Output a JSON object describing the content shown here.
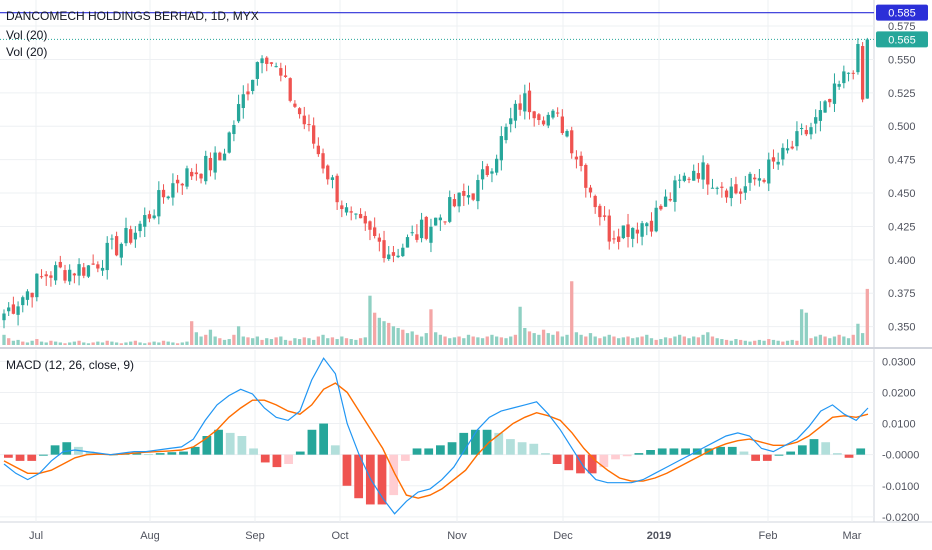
{
  "header": {
    "symbol_title": "DANCOMECH HOLDINGS BERHAD, 1D, MYX",
    "vol_label_1": "Vol (20)",
    "vol_label_2": "Vol (20)"
  },
  "macd_panel": {
    "title": "MACD (12, 26, close, 9)"
  },
  "price_axis": {
    "ticks": [
      "0.575",
      "0.550",
      "0.525",
      "0.500",
      "0.475",
      "0.450",
      "0.425",
      "0.400",
      "0.375",
      "0.350"
    ],
    "badge_high": "0.585",
    "badge_last": "0.565"
  },
  "macd_axis": {
    "ticks": [
      "0.0300",
      "0.0200",
      "0.0100",
      "-0.0000",
      "-0.0100",
      "-0.0200"
    ]
  },
  "time_axis": {
    "labels": [
      "Jul",
      "Aug",
      "Sep",
      "Oct",
      "Nov",
      "Dec",
      "2019",
      "Feb",
      "Mar"
    ]
  },
  "colors": {
    "up": "#26a69a",
    "down": "#ef5350",
    "vol_up": "#8fd0c3",
    "vol_down": "#f4a6a6",
    "hist_up_strong": "#26a69a",
    "hist_up_weak": "#b2dfdb",
    "hist_down_strong": "#ef5350",
    "hist_down_weak": "#ffcdd2",
    "macd_line": "#2196f3",
    "signal_line": "#ff6d00",
    "high_line": "#2b2fd8",
    "last_line": "#26a69a"
  },
  "chart_data": [
    {
      "type": "candlestick",
      "title": "DANCOMECH HOLDINGS BERHAD, 1D, MYX",
      "x_range": [
        "Jun",
        "Mar"
      ],
      "ylim": [
        0.34,
        0.59
      ],
      "high_marker": 0.585,
      "last_price": 0.565,
      "x_ticks": [
        "Jul",
        "Aug",
        "Sep",
        "Oct",
        "Nov",
        "Dec",
        "2019",
        "Feb",
        "Mar"
      ],
      "key_closes": [
        {
          "x": "Jun",
          "close": 0.36
        },
        {
          "x": "Jul",
          "close": 0.39
        },
        {
          "x": "Aug",
          "close": 0.395
        },
        {
          "x": "Aug (late)",
          "close": 0.42
        },
        {
          "x": "Sep",
          "close": 0.46
        },
        {
          "x": "Sep (late)",
          "close": 0.475
        },
        {
          "x": "Oct (early)",
          "close": 0.56
        },
        {
          "x": "Oct",
          "close": 0.5
        },
        {
          "x": "Oct (mid)",
          "close": 0.43
        },
        {
          "x": "Oct (late)",
          "close": 0.405
        },
        {
          "x": "Nov",
          "close": 0.43
        },
        {
          "x": "Nov (late)",
          "close": 0.455
        },
        {
          "x": "Dec (early)",
          "close": 0.52
        },
        {
          "x": "Dec",
          "close": 0.5
        },
        {
          "x": "Dec (late)",
          "close": 0.42
        },
        {
          "x": "2019",
          "close": 0.43
        },
        {
          "x": "Jan (late)",
          "close": 0.47
        },
        {
          "x": "Feb (early)",
          "close": 0.45
        },
        {
          "x": "Feb",
          "close": 0.475
        },
        {
          "x": "Feb (late)",
          "close": 0.51
        },
        {
          "x": "Mar",
          "close": 0.565
        }
      ]
    },
    {
      "type": "bar",
      "title": "Vol (20)",
      "notes": "volume histogram overlaid at bottom of price panel; values relative (max = 1)",
      "values": [
        0.12,
        0.08,
        0.05,
        0.06,
        0.04,
        0.03,
        0.05,
        0.07,
        0.04,
        0.03,
        0.05,
        0.04,
        0.03,
        0.02,
        0.03,
        0.04,
        0.05,
        0.03,
        0.02,
        0.03,
        0.04,
        0.03,
        0.05,
        0.04,
        0.03,
        0.02,
        0.03,
        0.04,
        0.05,
        0.03,
        0.02,
        0.03,
        0.04,
        0.03,
        0.05,
        0.04,
        0.03,
        0.02,
        0.03,
        0.04,
        0.28,
        0.15,
        0.1,
        0.12,
        0.18,
        0.1,
        0.08,
        0.06,
        0.07,
        0.12,
        0.22,
        0.1,
        0.09,
        0.08,
        0.1,
        0.06,
        0.08,
        0.07,
        0.09,
        0.1,
        0.06,
        0.05,
        0.08,
        0.07,
        0.09,
        0.08,
        0.06,
        0.1,
        0.12,
        0.08,
        0.09,
        0.07,
        0.1,
        0.08,
        0.07,
        0.06,
        0.08,
        0.09,
        0.58,
        0.38,
        0.32,
        0.28,
        0.26,
        0.22,
        0.2,
        0.18,
        0.14,
        0.16,
        0.12,
        0.1,
        0.14,
        0.42,
        0.15,
        0.12,
        0.1,
        0.08,
        0.09,
        0.1,
        0.08,
        0.12,
        0.1,
        0.09,
        0.08,
        0.1,
        0.12,
        0.1,
        0.09,
        0.08,
        0.1,
        0.12,
        0.45,
        0.2,
        0.16,
        0.14,
        0.12,
        0.18,
        0.14,
        0.12,
        0.16,
        0.1,
        0.12,
        0.75,
        0.15,
        0.12,
        0.1,
        0.14,
        0.1,
        0.08,
        0.1,
        0.12,
        0.1,
        0.08,
        0.09,
        0.1,
        0.08,
        0.09,
        0.1,
        0.12,
        0.08,
        0.06,
        0.07,
        0.09,
        0.08,
        0.1,
        0.12,
        0.1,
        0.08,
        0.1,
        0.09,
        0.12,
        0.15,
        0.1,
        0.08,
        0.07,
        0.06,
        0.05,
        0.07,
        0.06,
        0.05,
        0.04,
        0.05,
        0.06,
        0.05,
        0.07,
        0.06,
        0.05,
        0.04,
        0.05,
        0.06,
        0.05,
        0.42,
        0.38,
        0.08,
        0.1,
        0.12,
        0.1,
        0.08,
        0.1,
        0.12,
        0.1,
        0.08,
        0.12,
        0.25,
        0.14,
        0.66
      ]
    },
    {
      "type": "line",
      "title": "MACD (12, 26, close, 9)",
      "ylim": [
        -0.021,
        0.033
      ],
      "x_ticks": [
        "Jul",
        "Aug",
        "Sep",
        "Oct",
        "Nov",
        "Dec",
        "2019",
        "Feb",
        "Mar"
      ],
      "series": [
        {
          "name": "MACD",
          "values": [
            -0.003,
            -0.006,
            -0.008,
            -0.006,
            -0.002,
            0.001,
            0.0015,
            0.001,
            0.0005,
            0.0,
            0.0005,
            0.001,
            0.001,
            0.0015,
            0.002,
            0.0025,
            0.005,
            0.011,
            0.016,
            0.019,
            0.021,
            0.0195,
            0.015,
            0.012,
            0.011,
            0.014,
            0.024,
            0.031,
            0.026,
            0.01,
            0.0,
            -0.008,
            -0.014,
            -0.019,
            -0.015,
            -0.012,
            -0.011,
            -0.008,
            -0.004,
            0.002,
            0.008,
            0.012,
            0.014,
            0.015,
            0.016,
            0.017,
            0.013,
            0.008,
            0.002,
            -0.004,
            -0.008,
            -0.009,
            -0.009,
            -0.009,
            -0.008,
            -0.006,
            -0.004,
            -0.002,
            0.0,
            0.002,
            0.004,
            0.006,
            0.007,
            0.006,
            0.002,
            0.001,
            0.003,
            0.005,
            0.009,
            0.014,
            0.016,
            0.013,
            0.011,
            0.015
          ]
        },
        {
          "name": "Signal",
          "values": [
            -0.002,
            -0.004,
            -0.006,
            -0.006,
            -0.005,
            -0.003,
            -0.001,
            0.0,
            0.0002,
            0.0,
            0.0002,
            0.0005,
            0.0008,
            0.001,
            0.0012,
            0.0015,
            0.0025,
            0.005,
            0.008,
            0.012,
            0.015,
            0.0175,
            0.0175,
            0.016,
            0.014,
            0.013,
            0.016,
            0.021,
            0.023,
            0.02,
            0.014,
            0.008,
            0.002,
            -0.006,
            -0.013,
            -0.014,
            -0.013,
            -0.011,
            -0.008,
            -0.005,
            0.0,
            0.004,
            0.007,
            0.01,
            0.012,
            0.0135,
            0.0125,
            0.011,
            0.007,
            0.002,
            -0.002,
            -0.005,
            -0.0075,
            -0.0085,
            -0.0085,
            -0.0075,
            -0.006,
            -0.004,
            -0.002,
            0.0,
            0.002,
            0.0035,
            0.0045,
            0.005,
            0.004,
            0.003,
            0.003,
            0.004,
            0.006,
            0.009,
            0.012,
            0.0125,
            0.012,
            0.013
          ]
        },
        {
          "name": "Histogram",
          "type": "bar",
          "values": [
            -0.001,
            -0.002,
            -0.002,
            0.0,
            0.003,
            0.004,
            0.0025,
            0.001,
            0.0003,
            0.0,
            0.0003,
            0.0005,
            0.0002,
            0.0005,
            0.0008,
            0.001,
            0.0025,
            0.006,
            0.008,
            0.007,
            0.006,
            0.002,
            -0.0025,
            -0.004,
            -0.003,
            0.001,
            0.008,
            0.01,
            0.003,
            -0.01,
            -0.014,
            -0.016,
            -0.016,
            -0.013,
            -0.002,
            0.002,
            0.002,
            0.003,
            0.004,
            0.007,
            0.008,
            0.008,
            0.007,
            0.005,
            0.004,
            0.0035,
            0.0005,
            -0.003,
            -0.005,
            -0.006,
            -0.006,
            -0.004,
            -0.0015,
            -0.0005,
            0.0005,
            0.0015,
            0.002,
            0.002,
            0.002,
            0.002,
            0.002,
            0.0025,
            0.0025,
            0.001,
            -0.002,
            -0.002,
            0.0,
            0.001,
            0.003,
            0.005,
            0.004,
            0.0005,
            -0.001,
            0.002
          ]
        }
      ]
    }
  ]
}
